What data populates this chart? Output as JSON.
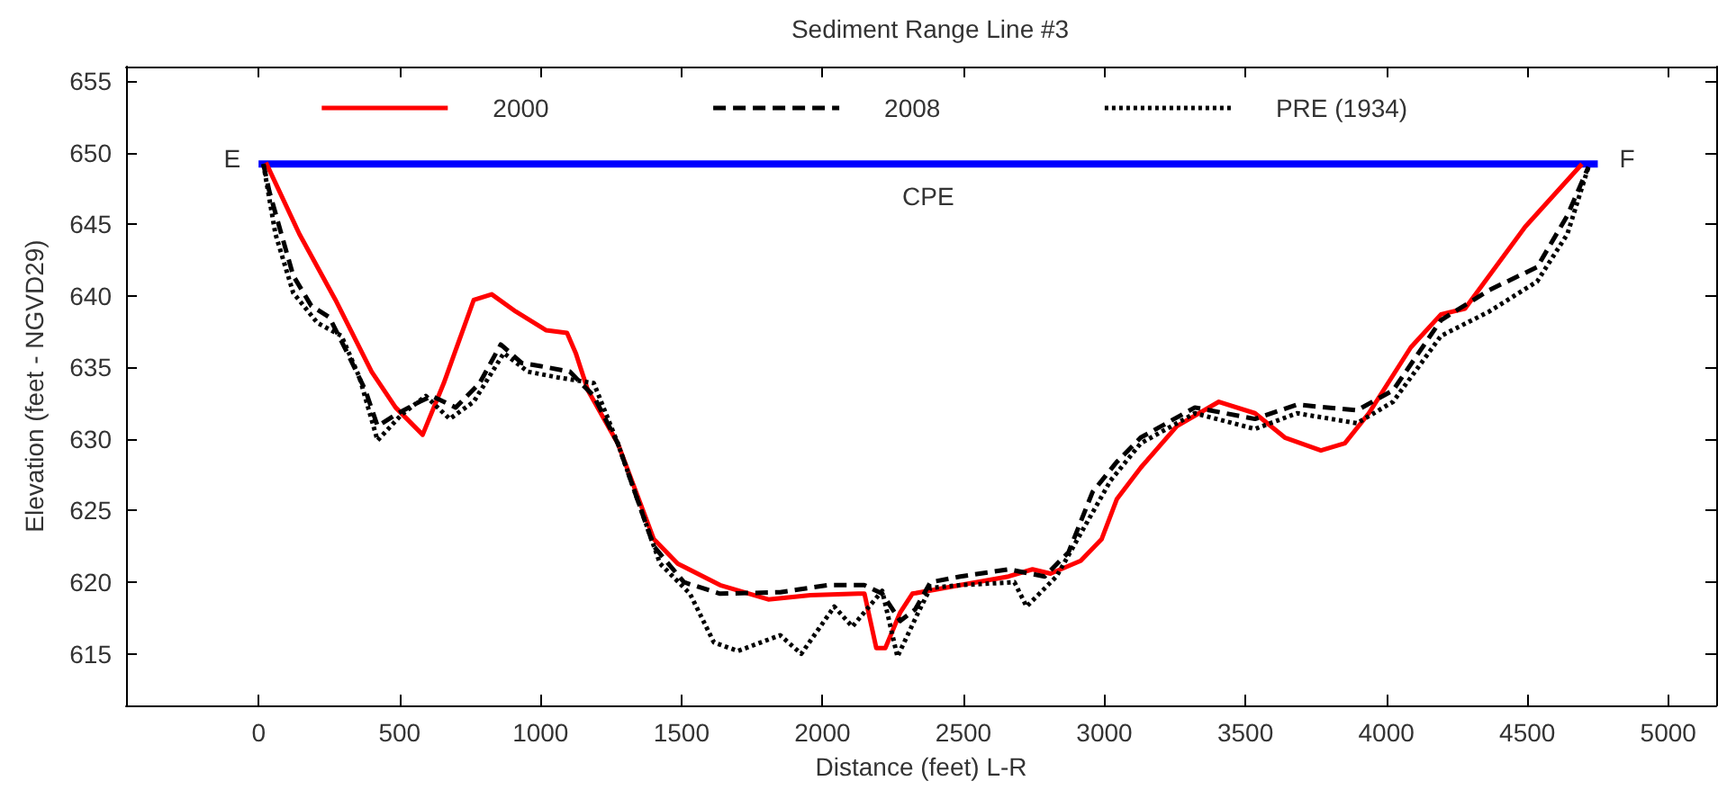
{
  "chart_data": {
    "type": "line",
    "title": "Sediment Range Line #3",
    "xlabel": "Distance (feet) L-R",
    "ylabel": "Elevation (feet - NGVD29)",
    "xlim": [
      -470,
      5170
    ],
    "xticks": [
      0,
      500,
      1000,
      1500,
      2000,
      2500,
      3000,
      3500,
      4000,
      4500,
      5000
    ],
    "ylim": [
      611.4,
      656
    ],
    "yticks": [
      615,
      620,
      625,
      630,
      635,
      640,
      645,
      650,
      655
    ],
    "grid": false,
    "legend": "top",
    "marker": "none",
    "annotations": [
      {
        "text": "E",
        "x": 0,
        "y": 649.2
      },
      {
        "text": "F",
        "x": 4750,
        "y": 649.2
      },
      {
        "text": "CPE",
        "x": 2375,
        "y": 649.2
      }
    ],
    "series": [
      {
        "name": "2000",
        "color": "#ff0000",
        "line_style": "solid",
        "x": [
          26,
          145,
          273,
          401,
          486,
          582,
          657,
          763,
          827,
          912,
          1019,
          1094,
          1125,
          1168,
          1274,
          1402,
          1487,
          1637,
          1808,
          1957,
          2127,
          2149,
          2191,
          2223,
          2276,
          2319,
          2489,
          2660,
          2745,
          2809,
          2916,
          2990,
          3044,
          3129,
          3257,
          3406,
          3534,
          3640,
          3768,
          3853,
          3938,
          4087,
          4194,
          4279,
          4492,
          4694
        ],
        "values": [
          649.3,
          644.3,
          639.7,
          634.7,
          632.2,
          630.3,
          633.9,
          639.7,
          640.1,
          638.9,
          637.6,
          637.4,
          636.0,
          633.4,
          629.7,
          623.0,
          621.3,
          619.8,
          618.8,
          619.1,
          619.2,
          619.2,
          615.4,
          615.4,
          617.9,
          619.2,
          619.8,
          620.4,
          620.9,
          620.6,
          621.5,
          623.0,
          625.8,
          628.0,
          630.9,
          632.6,
          631.8,
          630.1,
          629.2,
          629.7,
          631.8,
          636.4,
          638.7,
          639.1,
          644.8,
          649.2
        ]
      },
      {
        "name": "2008",
        "color": "#000000",
        "line_style": "dashed",
        "x": [
          17,
          38,
          81,
          123,
          187,
          251,
          315,
          379,
          422,
          486,
          571,
          614,
          699,
          784,
          859,
          934,
          997,
          1104,
          1189,
          1274,
          1402,
          1509,
          1637,
          1850,
          2020,
          2148,
          2212,
          2276,
          2329,
          2383,
          2489,
          2660,
          2788,
          2873,
          2958,
          3044,
          3129,
          3321,
          3534,
          3683,
          3896,
          4024,
          4194,
          4365,
          4535,
          4642,
          4717
        ],
        "values": [
          649.2,
          647.3,
          644.3,
          641.4,
          639.3,
          638.5,
          636.0,
          633.4,
          630.9,
          631.7,
          632.6,
          633.0,
          632.2,
          633.9,
          636.6,
          635.3,
          635.1,
          634.7,
          633.0,
          629.7,
          622.5,
          620.0,
          619.2,
          619.3,
          619.8,
          619.8,
          619.2,
          617.3,
          618.1,
          620.0,
          620.4,
          620.9,
          620.4,
          622.1,
          626.3,
          628.4,
          630.1,
          632.2,
          631.4,
          632.4,
          632.0,
          633.4,
          638.3,
          640.4,
          642.0,
          645.6,
          649.0
        ]
      },
      {
        "name": "PRE (1934)",
        "color": "#000000",
        "line_style": "dotted",
        "x": [
          17,
          60,
          123,
          209,
          294,
          358,
          422,
          507,
          593,
          678,
          763,
          870,
          955,
          1061,
          1189,
          1274,
          1424,
          1530,
          1615,
          1700,
          1850,
          1925,
          2042,
          2106,
          2212,
          2266,
          2340,
          2383,
          2489,
          2681,
          2724,
          2830,
          2916,
          3022,
          3129,
          3321,
          3534,
          3683,
          3896,
          4024,
          4194,
          4365,
          4535,
          4642,
          4717
        ],
        "values": [
          649.2,
          644.3,
          640.2,
          638.1,
          637.2,
          634.3,
          629.9,
          631.7,
          633.0,
          631.4,
          632.6,
          636.0,
          634.7,
          634.3,
          633.9,
          629.7,
          621.3,
          619.2,
          615.8,
          615.2,
          616.3,
          615.0,
          618.3,
          616.9,
          619.4,
          614.8,
          617.9,
          619.6,
          619.8,
          620.0,
          618.3,
          620.4,
          623.4,
          627.1,
          629.7,
          631.8,
          630.7,
          631.8,
          631.1,
          632.6,
          637.2,
          638.9,
          641.0,
          644.3,
          649.0
        ]
      },
      {
        "color": "#0000ff",
        "line_style": "solid",
        "x": [
          0,
          4750
        ],
        "values": [
          649.2,
          649.2
        ]
      }
    ]
  }
}
